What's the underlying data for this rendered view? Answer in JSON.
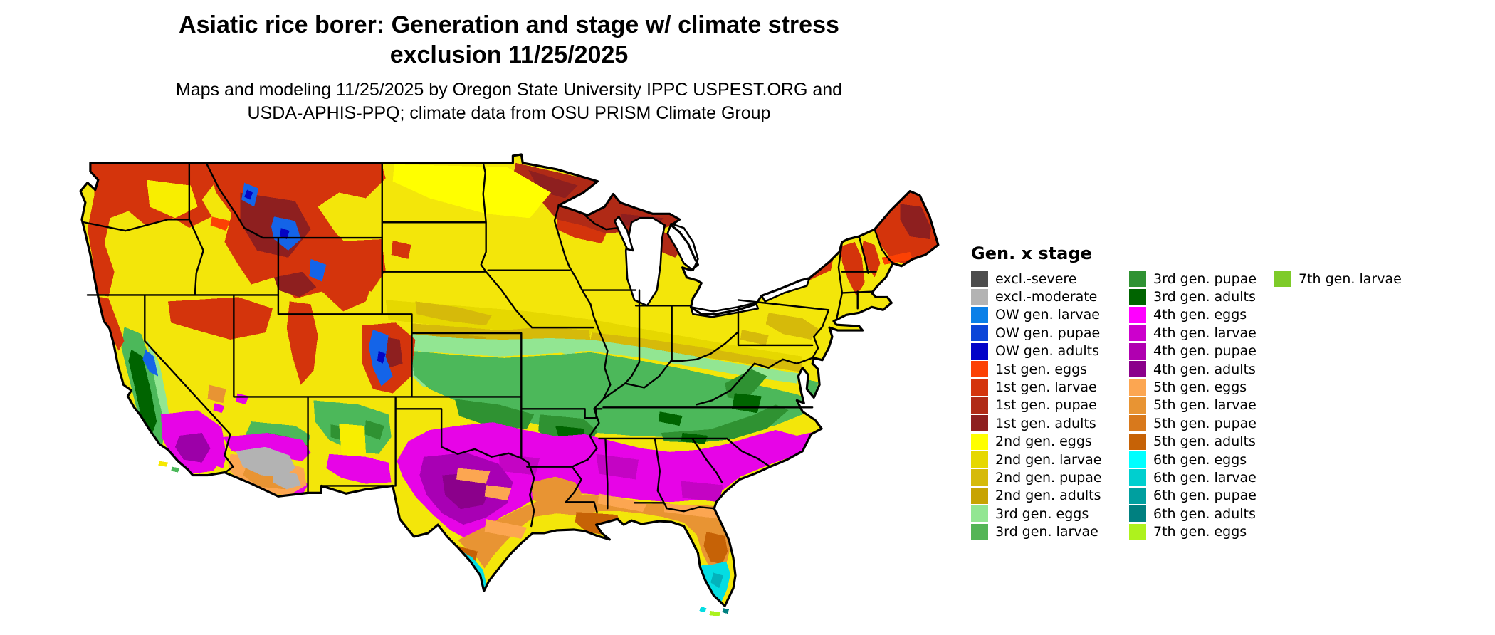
{
  "title": {
    "line1": "Asiatic rice borer: Generation and stage w/ climate stress",
    "line2": "exclusion 11/25/2025"
  },
  "subtitle": {
    "line1": "Maps and modeling 11/25/2025 by Oregon State University IPPC USPEST.ORG and",
    "line2": "USDA-APHIS-PPQ; climate data from OSU PRISM Climate Group"
  },
  "map": {
    "area": "contiguous United States",
    "kind": "generation-and-stage choropleth raster"
  },
  "legend": {
    "title": "Gen. x stage",
    "columns": [
      {
        "items": [
          {
            "label": "excl.-severe",
            "color": "#4d4d4d"
          },
          {
            "label": "excl.-moderate",
            "color": "#b3b3b3"
          },
          {
            "label": "OW gen. larvae",
            "color": "#0a80e8"
          },
          {
            "label": "OW gen. pupae",
            "color": "#0b45d8"
          },
          {
            "label": "OW gen. adults",
            "color": "#0303c8"
          },
          {
            "label": "1st gen. eggs",
            "color": "#fc4104"
          },
          {
            "label": "1st gen. larvae",
            "color": "#d4340c"
          },
          {
            "label": "1st gen. pupae",
            "color": "#b02a16"
          },
          {
            "label": "1st gen. adults",
            "color": "#8e1f1f"
          },
          {
            "label": "2nd gen. eggs",
            "color": "#ffff00"
          },
          {
            "label": "2nd gen. larvae",
            "color": "#e6d800"
          },
          {
            "label": "2nd gen. pupae",
            "color": "#d6ba0a"
          },
          {
            "label": "2nd gen. adults",
            "color": "#c7a303"
          },
          {
            "label": "3rd gen. eggs",
            "color": "#92e692"
          },
          {
            "label": "3rd gen. larvae",
            "color": "#54b556"
          }
        ]
      },
      {
        "items": [
          {
            "label": "3rd gen. pupae",
            "color": "#2f9232"
          },
          {
            "label": "3rd gen. adults",
            "color": "#006400"
          },
          {
            "label": "4th gen. eggs",
            "color": "#ff00ff"
          },
          {
            "label": "4th gen. larvae",
            "color": "#cc00cc"
          },
          {
            "label": "4th gen. pupae",
            "color": "#b000b0"
          },
          {
            "label": "4th gen. adults",
            "color": "#8b008b"
          },
          {
            "label": "5th gen. eggs",
            "color": "#fca651"
          },
          {
            "label": "5th gen. larvae",
            "color": "#e89433"
          },
          {
            "label": "5th gen. pupae",
            "color": "#d8791c"
          },
          {
            "label": "5th gen. adults",
            "color": "#c66206"
          },
          {
            "label": "6th gen. eggs",
            "color": "#00ffff"
          },
          {
            "label": "6th gen. larvae",
            "color": "#00cfcf"
          },
          {
            "label": "6th gen. pupae",
            "color": "#009f9f"
          },
          {
            "label": "6th gen. adults",
            "color": "#008080"
          },
          {
            "label": "7th gen. eggs",
            "color": "#aef21d"
          }
        ]
      },
      {
        "items": [
          {
            "label": "7th gen. larvae",
            "color": "#7ecb29"
          }
        ]
      }
    ]
  }
}
